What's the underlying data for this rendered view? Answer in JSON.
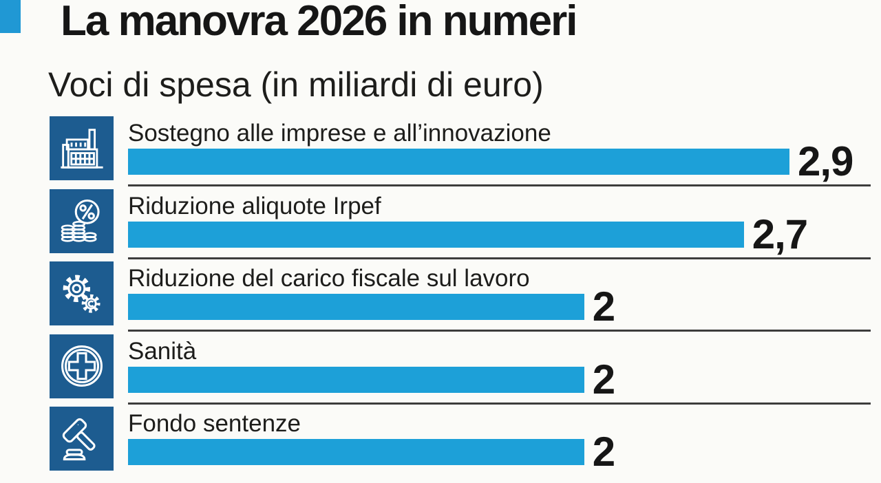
{
  "header": {
    "title": "La manovra 2026 in numeri",
    "subtitle": "Voci di spesa (in miliardi di euro)",
    "accent_color": "#2098d4"
  },
  "chart_data": {
    "type": "bar",
    "orientation": "horizontal",
    "title": "La manovra 2026 in numeri",
    "subtitle": "Voci di spesa (in miliardi di euro)",
    "unit": "miliardi di euro",
    "categories": [
      "Sostegno alle imprese e all’innovazione",
      "Riduzione aliquote Irpef",
      "Riduzione del carico fiscale sul lavoro",
      "Sanità",
      "Fondo sentenze"
    ],
    "values": [
      2.9,
      2.7,
      2,
      2,
      2
    ],
    "value_labels": [
      "2,9",
      "2,7",
      "2",
      "2",
      "2"
    ],
    "icons": [
      "factory-icon",
      "percent-coins-icon",
      "gears-icon",
      "medical-cross-icon",
      "gavel-icon"
    ],
    "xlim": [
      0,
      2.9
    ],
    "max_value": 2.9,
    "bar_color": "#1da0d8",
    "icon_bg_color": "#1d5c90",
    "grid": false,
    "legend": false
  }
}
